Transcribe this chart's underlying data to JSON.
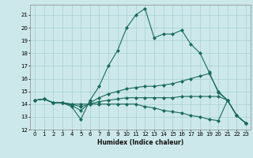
{
  "xlabel": "Humidex (Indice chaleur)",
  "bg_color": "#cce8ea",
  "line_color": "#1a6b5a",
  "xlim": [
    -0.5,
    23.5
  ],
  "ylim": [
    12,
    21.8
  ],
  "yticks": [
    12,
    13,
    14,
    15,
    16,
    17,
    18,
    19,
    20,
    21
  ],
  "xticks": [
    0,
    1,
    2,
    3,
    4,
    5,
    6,
    7,
    8,
    9,
    10,
    11,
    12,
    13,
    14,
    15,
    16,
    17,
    18,
    19,
    20,
    21,
    22,
    23
  ],
  "lines": [
    {
      "x": [
        0,
        1,
        2,
        3,
        4,
        5,
        6,
        7,
        8,
        9,
        10,
        11,
        12,
        13,
        14,
        15,
        16,
        17,
        18,
        19,
        20,
        21,
        22,
        23
      ],
      "y": [
        14.3,
        14.4,
        14.1,
        14.1,
        13.8,
        12.8,
        14.3,
        15.4,
        17.0,
        18.2,
        20.0,
        21.0,
        21.5,
        19.2,
        19.5,
        19.5,
        19.8,
        18.7,
        18.0,
        16.5,
        14.9,
        14.3,
        13.1,
        12.5
      ]
    },
    {
      "x": [
        0,
        1,
        2,
        3,
        4,
        5,
        6,
        7,
        8,
        9,
        10,
        11,
        12,
        13,
        14,
        15,
        16,
        17,
        18,
        19,
        20,
        21,
        22,
        23
      ],
      "y": [
        14.3,
        14.4,
        14.1,
        14.1,
        13.9,
        13.5,
        14.1,
        14.5,
        14.8,
        15.0,
        15.2,
        15.3,
        15.4,
        15.4,
        15.5,
        15.6,
        15.8,
        16.0,
        16.2,
        16.4,
        15.0,
        14.3,
        13.1,
        12.5
      ]
    },
    {
      "x": [
        0,
        1,
        2,
        3,
        4,
        5,
        6,
        7,
        8,
        9,
        10,
        11,
        12,
        13,
        14,
        15,
        16,
        17,
        18,
        19,
        20,
        21,
        22,
        23
      ],
      "y": [
        14.3,
        14.4,
        14.1,
        14.1,
        14.0,
        13.8,
        14.0,
        14.2,
        14.3,
        14.4,
        14.5,
        14.5,
        14.5,
        14.5,
        14.5,
        14.5,
        14.6,
        14.6,
        14.6,
        14.6,
        14.6,
        14.3,
        13.1,
        12.5
      ]
    },
    {
      "x": [
        0,
        1,
        2,
        3,
        4,
        5,
        6,
        7,
        8,
        9,
        10,
        11,
        12,
        13,
        14,
        15,
        16,
        17,
        18,
        19,
        20,
        21,
        22,
        23
      ],
      "y": [
        14.3,
        14.4,
        14.1,
        14.1,
        14.0,
        14.0,
        14.0,
        14.0,
        14.0,
        14.0,
        14.0,
        14.0,
        13.8,
        13.7,
        13.5,
        13.4,
        13.3,
        13.1,
        13.0,
        12.8,
        12.7,
        14.3,
        13.1,
        12.5
      ]
    }
  ]
}
